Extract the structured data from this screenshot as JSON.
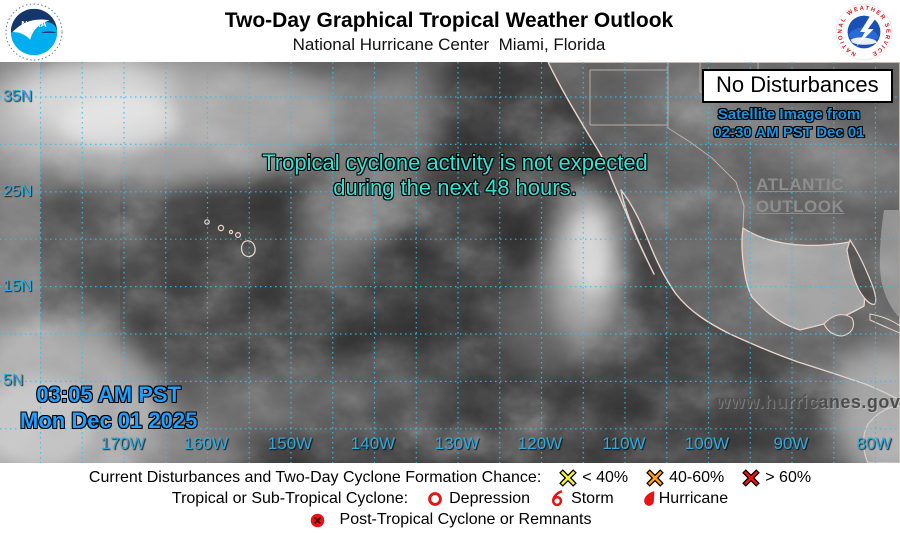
{
  "header": {
    "title": "Two-Day Graphical Tropical Weather Outlook",
    "subtitle": "National Hurricane Center  Miami, Florida",
    "noaa_logo_text": "NOAA",
    "nws_logo_text": "NATIONAL WEATHER SERVICE"
  },
  "map": {
    "no_disturbances_label": "No Disturbances",
    "satellite_caption_line1": "Satellite Image from",
    "satellite_caption_line2": "02:30 AM PST Dec 01",
    "atlantic_link_line1": "ATLANTIC",
    "atlantic_link_line2": "OUTLOOK",
    "message_line1": "Tropical cyclone activity is not expected",
    "message_line2": "during the next 48 hours.",
    "timestamp_line1": "03:05 AM PST",
    "timestamp_line2": "Mon Dec 01 2025",
    "website": "www.hurricanes.gov",
    "lat_labels": [
      "35N",
      "25N",
      "15N",
      "5N"
    ],
    "lon_labels": [
      "170W",
      "160W",
      "150W",
      "140W",
      "130W",
      "120W",
      "110W",
      "100W",
      "90W",
      "80W"
    ],
    "colors": {
      "grid_cyan": "#35c0f0",
      "label_cyan": "#2fa9de",
      "message_teal": "#36e3d4",
      "timestamp_blue": "#1fa0ff",
      "caption_blue": "#1b95e0"
    }
  },
  "legend": {
    "chance_intro": "Current Disturbances and Two-Day Cyclone Formation Chance:",
    "chances": [
      {
        "label": "< 40%",
        "color": "#f2ef3a"
      },
      {
        "label": "40-60%",
        "color": "#ff9e1c"
      },
      {
        "label": "> 60%",
        "color": "#e81414"
      }
    ],
    "cyclone_intro": "Tropical or Sub-Tropical Cyclone:",
    "cyclone_types": [
      {
        "label": "Depression"
      },
      {
        "label": "Storm"
      },
      {
        "label": "Hurricane"
      }
    ],
    "post_tropical_label": "Post-Tropical Cyclone or Remnants",
    "symbol_red": "#e81414"
  }
}
